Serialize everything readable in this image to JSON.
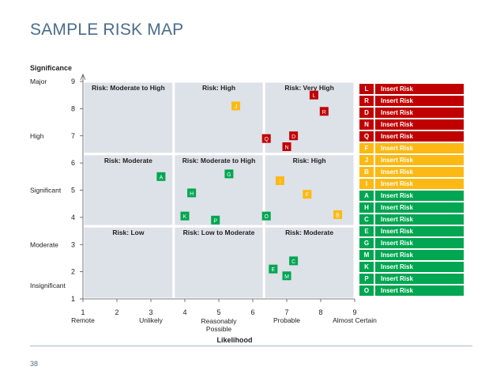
{
  "page": {
    "title": "SAMPLE RISK MAP",
    "page_number": "38"
  },
  "colors": {
    "red": "#c00000",
    "yellow": "#fdb913",
    "green": "#00a651",
    "zone_fill": "#dde1e8",
    "title": "#4a6d8c"
  },
  "chart_data": {
    "type": "scatter",
    "title": "",
    "xlabel": "Likelihood",
    "ylabel": "Significance",
    "xlim": [
      1,
      9
    ],
    "ylim": [
      1,
      9
    ],
    "x_ticks": [
      1,
      2,
      3,
      4,
      5,
      6,
      7,
      8,
      9
    ],
    "y_ticks": [
      1,
      2,
      3,
      4,
      5,
      6,
      7,
      8,
      9
    ],
    "x_categories": [
      {
        "x": 1,
        "label": "Remote"
      },
      {
        "x": 3,
        "label": "Unlikely"
      },
      {
        "x": 5,
        "label": "Reasonably Possible"
      },
      {
        "x": 7,
        "label": "Probable"
      },
      {
        "x": 9,
        "label": "Almost Certain"
      }
    ],
    "y_categories": [
      {
        "y": 9,
        "label": "Major"
      },
      {
        "y": 7,
        "label": "High"
      },
      {
        "y": 5,
        "label": "Significant"
      },
      {
        "y": 3,
        "label": "Moderate"
      },
      {
        "y": 1.5,
        "label": "Insignificant"
      }
    ],
    "zones": [
      {
        "x": [
          1,
          3.67
        ],
        "y": [
          6.33,
          9
        ],
        "label": "Risk: Moderate to High"
      },
      {
        "x": [
          3.67,
          6.33
        ],
        "y": [
          6.33,
          9
        ],
        "label": "Risk: High"
      },
      {
        "x": [
          6.33,
          9
        ],
        "y": [
          6.33,
          9
        ],
        "label": "Risk: Very High"
      },
      {
        "x": [
          1,
          3.67
        ],
        "y": [
          3.67,
          6.33
        ],
        "label": "Risk: Moderate"
      },
      {
        "x": [
          3.67,
          6.33
        ],
        "y": [
          3.67,
          6.33
        ],
        "label": "Risk: Moderate to High"
      },
      {
        "x": [
          6.33,
          9
        ],
        "y": [
          3.67,
          6.33
        ],
        "label": "Risk: High"
      },
      {
        "x": [
          1,
          3.67
        ],
        "y": [
          1,
          3.67
        ],
        "label": "Risk: Low"
      },
      {
        "x": [
          3.67,
          6.33
        ],
        "y": [
          1,
          3.67
        ],
        "label": "Risk: Low to Moderate"
      },
      {
        "x": [
          6.33,
          9
        ],
        "y": [
          1,
          3.67
        ],
        "label": "Risk: Moderate"
      }
    ],
    "points": [
      {
        "label": "L",
        "x": 7.8,
        "y": 8.5,
        "level": "red"
      },
      {
        "label": "R",
        "x": 8.1,
        "y": 7.9,
        "level": "red"
      },
      {
        "label": "J",
        "x": 5.5,
        "y": 8.1,
        "level": "yellow"
      },
      {
        "label": "Q",
        "x": 6.4,
        "y": 6.9,
        "level": "red"
      },
      {
        "label": "D",
        "x": 7.2,
        "y": 7.0,
        "level": "red"
      },
      {
        "label": "N",
        "x": 7.0,
        "y": 6.6,
        "level": "red"
      },
      {
        "label": "A",
        "x": 3.3,
        "y": 5.5,
        "level": "green"
      },
      {
        "label": "G",
        "x": 5.3,
        "y": 5.6,
        "level": "green"
      },
      {
        "label": "I",
        "x": 6.8,
        "y": 5.35,
        "level": "yellow"
      },
      {
        "label": "H",
        "x": 4.2,
        "y": 4.9,
        "level": "green"
      },
      {
        "label": "F",
        "x": 7.6,
        "y": 4.85,
        "level": "yellow"
      },
      {
        "label": "K",
        "x": 4.0,
        "y": 4.05,
        "level": "green"
      },
      {
        "label": "O",
        "x": 6.4,
        "y": 4.05,
        "level": "green"
      },
      {
        "label": "B",
        "x": 8.5,
        "y": 4.1,
        "level": "yellow"
      },
      {
        "label": "P",
        "x": 4.9,
        "y": 3.9,
        "level": "green"
      },
      {
        "label": "C",
        "x": 7.2,
        "y": 2.4,
        "level": "green"
      },
      {
        "label": "E",
        "x": 6.6,
        "y": 2.1,
        "level": "green"
      },
      {
        "label": "M",
        "x": 7.0,
        "y": 1.85,
        "level": "green"
      }
    ],
    "legend_placement": "right",
    "grid": false
  },
  "legend": [
    {
      "letter": "L",
      "text": "Insert Risk",
      "level": "red"
    },
    {
      "letter": "R",
      "text": "Insert Risk",
      "level": "red"
    },
    {
      "letter": "D",
      "text": "Insert Risk",
      "level": "red"
    },
    {
      "letter": "N",
      "text": "Insert Risk",
      "level": "red"
    },
    {
      "letter": "Q",
      "text": "Insert Risk",
      "level": "red"
    },
    {
      "letter": "F",
      "text": "Insert Risk",
      "level": "yellow"
    },
    {
      "letter": "J",
      "text": "Insert Risk",
      "level": "yellow"
    },
    {
      "letter": "B",
      "text": "Insert Risk",
      "level": "yellow"
    },
    {
      "letter": "I",
      "text": "Insert Risk",
      "level": "yellow"
    },
    {
      "letter": "A",
      "text": "Insert Risk",
      "level": "green"
    },
    {
      "letter": "H",
      "text": "Insert Risk",
      "level": "green"
    },
    {
      "letter": "C",
      "text": "Insert Risk",
      "level": "green"
    },
    {
      "letter": "E",
      "text": "Insert Risk",
      "level": "green"
    },
    {
      "letter": "G",
      "text": "Insert Risk",
      "level": "green"
    },
    {
      "letter": "M",
      "text": "Insert Risk",
      "level": "green"
    },
    {
      "letter": "K",
      "text": "Insert Risk",
      "level": "green"
    },
    {
      "letter": "P",
      "text": "Insert Risk",
      "level": "green"
    },
    {
      "letter": "O",
      "text": "Insert Risk",
      "level": "green"
    }
  ]
}
